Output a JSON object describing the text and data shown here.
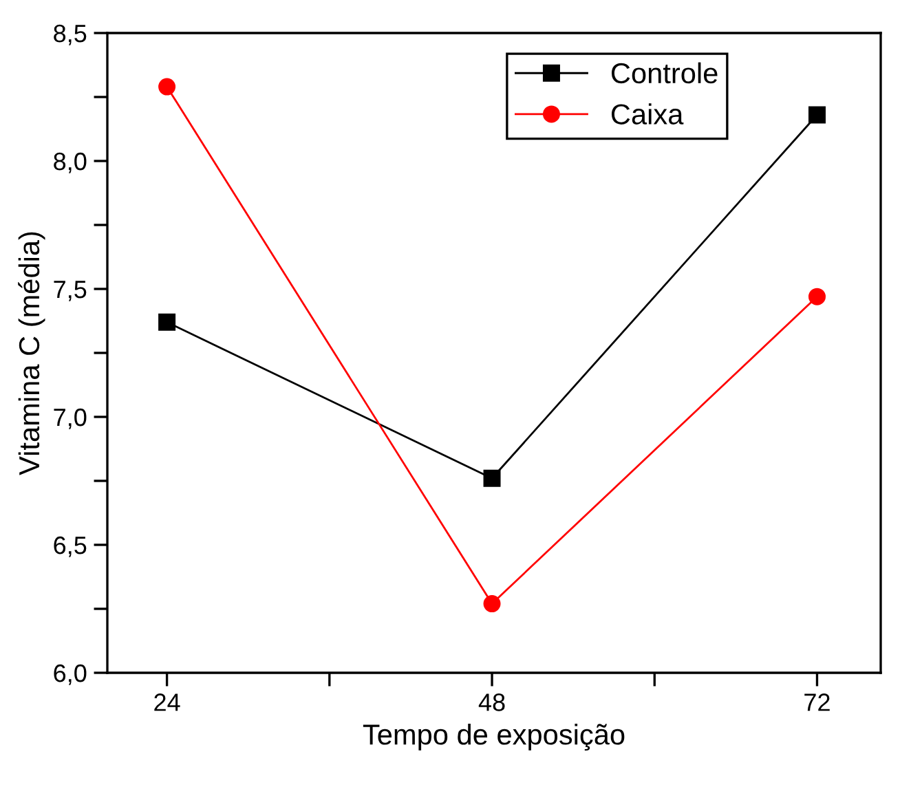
{
  "chart_data": {
    "type": "line",
    "xlabel": "Tempo de exposição",
    "ylabel": "Vitamina C (média)",
    "x": [
      24,
      48,
      72
    ],
    "series": [
      {
        "name": "Controle",
        "color": "#000000",
        "marker": "square",
        "values": [
          7.37,
          6.76,
          8.18
        ]
      },
      {
        "name": "Caixa",
        "color": "#ff0000",
        "marker": "circle",
        "values": [
          8.29,
          6.27,
          7.47
        ]
      }
    ],
    "xlim": [
      19.6,
      76.7
    ],
    "xticks": [
      24,
      {
        "value": 36,
        "label": null
      },
      48,
      {
        "value": 60,
        "label": null
      },
      72
    ],
    "ylim": [
      6.0,
      8.5
    ],
    "yticks": [
      {
        "value": 6.0,
        "label": "6,0"
      },
      {
        "value": 6.25,
        "label": null
      },
      {
        "value": 6.5,
        "label": "6,5"
      },
      {
        "value": 6.75,
        "label": null
      },
      {
        "value": 7.0,
        "label": "7,0"
      },
      {
        "value": 7.25,
        "label": null
      },
      {
        "value": 7.5,
        "label": "7,5"
      },
      {
        "value": 7.75,
        "label": null
      },
      {
        "value": 8.0,
        "label": "8,0"
      },
      {
        "value": 8.25,
        "label": null
      },
      {
        "value": 8.5,
        "label": "8,5"
      }
    ],
    "grid": false,
    "legend": "top right",
    "line_style": "solid"
  }
}
